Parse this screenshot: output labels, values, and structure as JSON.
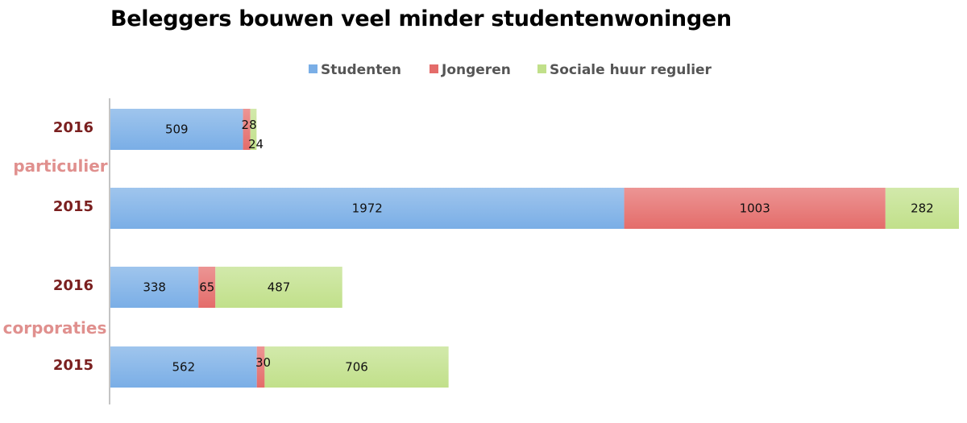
{
  "title": "Beleggers bouwen veel minder studentenwoningen",
  "chart_data": {
    "type": "bar",
    "orientation": "horizontal",
    "stacked": true,
    "title": "Beleggers bouwen veel minder studentenwoningen",
    "legend_position": "top",
    "grid": false,
    "xlim": [
      0,
      3300
    ],
    "series": [
      {
        "name": "Studenten",
        "color": "#7aaee6",
        "values": [
          509,
          1972,
          338,
          562
        ]
      },
      {
        "name": "Jongeren",
        "color": "#e46c6a",
        "values": [
          28,
          1003,
          65,
          30
        ]
      },
      {
        "name": "Sociale huur regulier",
        "color": "#c1e08a",
        "values": [
          24,
          282,
          487,
          706
        ]
      }
    ],
    "rows": [
      {
        "year": "2016",
        "group": "particulier"
      },
      {
        "year": "2015",
        "group": "particulier"
      },
      {
        "year": "2016",
        "group": "corporaties"
      },
      {
        "year": "2015",
        "group": "corporaties"
      }
    ],
    "groups": [
      "particulier",
      "corporaties"
    ]
  }
}
